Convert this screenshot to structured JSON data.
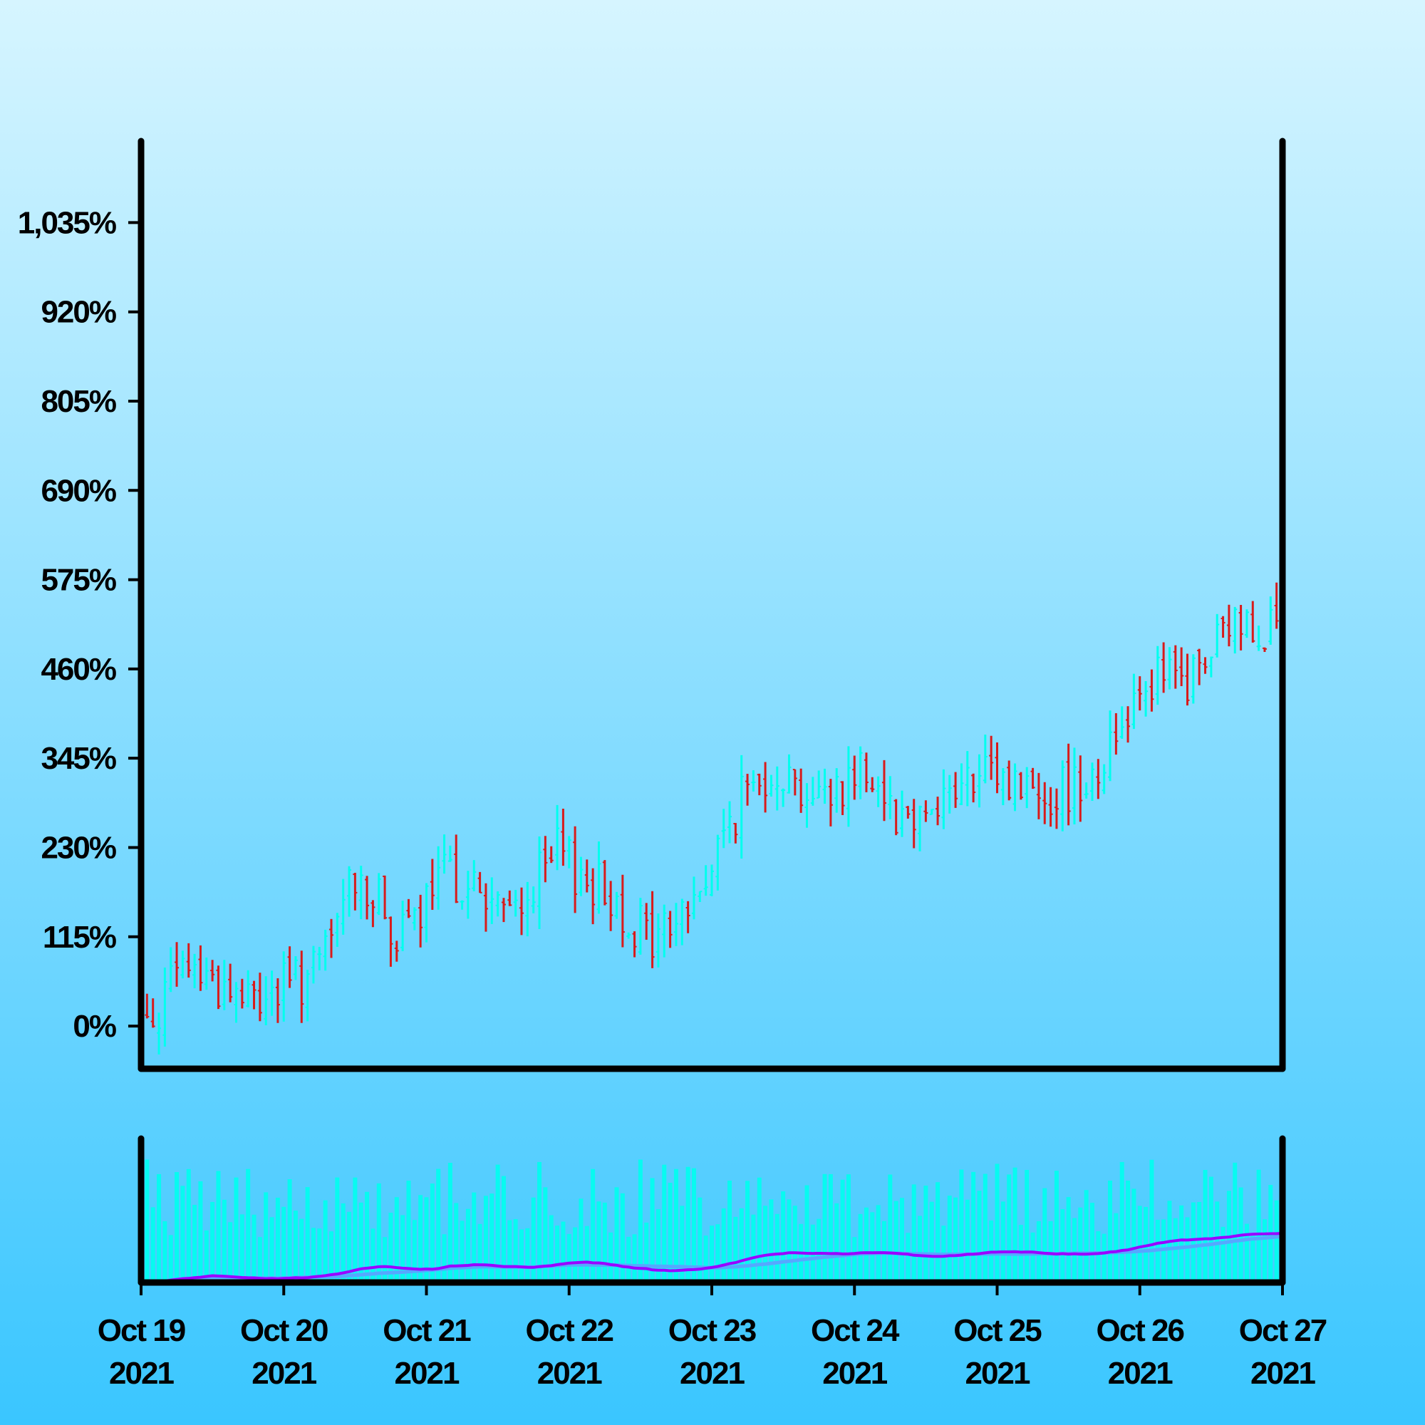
{
  "chart_data": {
    "type": "ohlc",
    "title": "",
    "xlabel": "",
    "ylabel": "",
    "y_unit": "%",
    "grid": false,
    "legend": "none",
    "ylim": [
      -55,
      1140
    ],
    "y_ticks": [
      "0%",
      "115%",
      "230%",
      "345%",
      "460%",
      "575%",
      "690%",
      "805%",
      "920%",
      "1,035%"
    ],
    "y_tick_values": [
      0,
      115,
      230,
      345,
      460,
      575,
      690,
      805,
      920,
      1035
    ],
    "x_ticks": [
      {
        "date": "Oct 19",
        "year": "2021"
      },
      {
        "date": "Oct 20",
        "year": "2021"
      },
      {
        "date": "Oct 21",
        "year": "2021"
      },
      {
        "date": "Oct 22",
        "year": "2021"
      },
      {
        "date": "Oct 23",
        "year": "2021"
      },
      {
        "date": "Oct 24",
        "year": "2021"
      },
      {
        "date": "Oct 25",
        "year": "2021"
      },
      {
        "date": "Oct 26",
        "year": "2021"
      },
      {
        "date": "Oct 27",
        "year": "2021"
      }
    ],
    "x_range": [
      "2021-10-19 00:00",
      "2021-10-27 00:00"
    ],
    "bar_interval_hours": 1,
    "close_anchor_points": [
      {
        "x": "2021-10-19 00:00",
        "y": 0
      },
      {
        "x": "2021-10-19 08:00",
        "y": 80
      },
      {
        "x": "2021-10-19 18:00",
        "y": 30
      },
      {
        "x": "2021-10-20 06:00",
        "y": 70
      },
      {
        "x": "2021-10-20 12:00",
        "y": 200
      },
      {
        "x": "2021-10-20 20:00",
        "y": 110
      },
      {
        "x": "2021-10-21 04:00",
        "y": 200
      },
      {
        "x": "2021-10-21 14:00",
        "y": 140
      },
      {
        "x": "2021-10-21 22:00",
        "y": 220
      },
      {
        "x": "2021-10-22 08:00",
        "y": 160
      },
      {
        "x": "2021-10-22 14:00",
        "y": 110
      },
      {
        "x": "2021-10-22 22:00",
        "y": 170
      },
      {
        "x": "2021-10-23 04:00",
        "y": 280
      },
      {
        "x": "2021-10-23 10:00",
        "y": 340
      },
      {
        "x": "2021-10-23 18:00",
        "y": 290
      },
      {
        "x": "2021-10-24 02:00",
        "y": 340
      },
      {
        "x": "2021-10-24 08:00",
        "y": 270
      },
      {
        "x": "2021-10-24 16:00",
        "y": 300
      },
      {
        "x": "2021-10-25 00:00",
        "y": 320
      },
      {
        "x": "2021-10-25 10:00",
        "y": 300
      },
      {
        "x": "2021-10-25 18:00",
        "y": 340
      },
      {
        "x": "2021-10-26 00:00",
        "y": 450
      },
      {
        "x": "2021-10-26 08:00",
        "y": 440
      },
      {
        "x": "2021-10-26 16:00",
        "y": 520
      },
      {
        "x": "2021-10-27 00:00",
        "y": 520
      }
    ],
    "colors": {
      "up": "#00ffee",
      "down": "#d91a1a",
      "volume": "#00ffee",
      "ma_fast": "#9a00ff",
      "ma_slow": "#55a8ff",
      "axis": "#000000",
      "background_top": "#d6f5ff",
      "background_bottom": "#3ac6ff"
    },
    "volume_panel": {
      "y_axis_labels": false,
      "moving_averages": [
        "fast",
        "slow"
      ]
    }
  }
}
